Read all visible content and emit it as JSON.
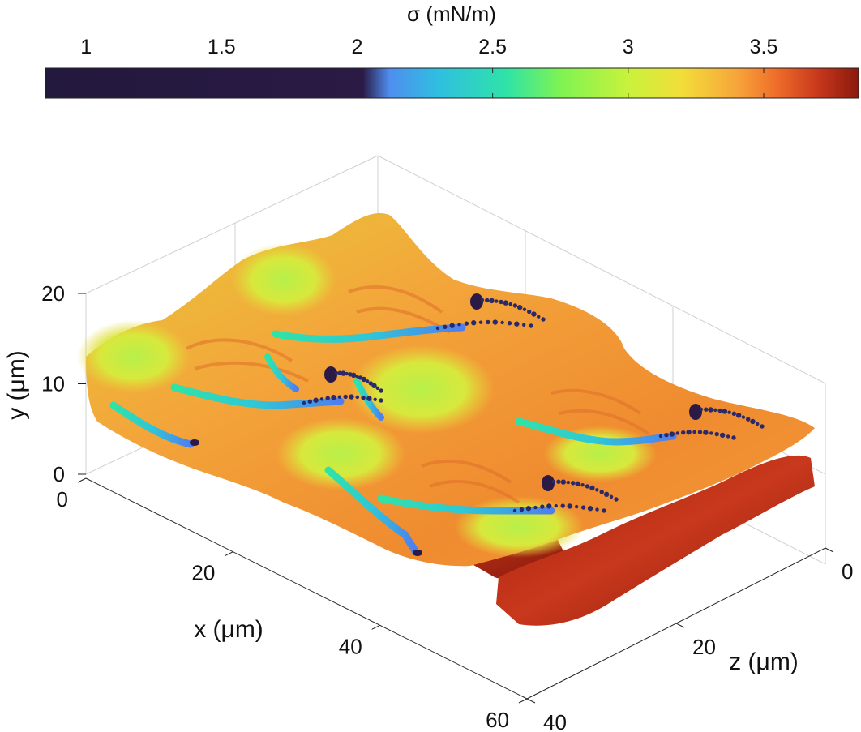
{
  "chart_data": {
    "type": "surface3d",
    "colorbar": {
      "label": "σ (mN/m)",
      "range": [
        0.85,
        3.85
      ],
      "ticks": [
        {
          "value": 1,
          "label": "1"
        },
        {
          "value": 1.5,
          "label": "1.5"
        },
        {
          "value": 2,
          "label": "2"
        },
        {
          "value": 2.5,
          "label": "2.5"
        },
        {
          "value": 3,
          "label": "3"
        },
        {
          "value": 3.5,
          "label": "3.5"
        }
      ],
      "placement": "top",
      "colormap": [
        {
          "v": 0.85,
          "c": "#23183d"
        },
        {
          "v": 2.02,
          "c": "#2a1a45"
        },
        {
          "v": 2.12,
          "c": "#4f8ef0"
        },
        {
          "v": 2.3,
          "c": "#2fbfe0"
        },
        {
          "v": 2.55,
          "c": "#2fe3a8"
        },
        {
          "v": 2.75,
          "c": "#7ef352"
        },
        {
          "v": 3.0,
          "c": "#c9f23c"
        },
        {
          "v": 3.2,
          "c": "#f2dd3a"
        },
        {
          "v": 3.4,
          "c": "#f7a53a"
        },
        {
          "v": 3.55,
          "c": "#ef6c2a"
        },
        {
          "v": 3.7,
          "c": "#c8381c"
        },
        {
          "v": 3.85,
          "c": "#8a1a0c"
        }
      ]
    },
    "axes": {
      "x": {
        "label": "x (μm)",
        "range": [
          0,
          60
        ],
        "ticks": [
          {
            "value": 0,
            "label": "0"
          },
          {
            "value": 20,
            "label": "20"
          },
          {
            "value": 40,
            "label": "40"
          },
          {
            "value": 60,
            "label": "60"
          }
        ]
      },
      "y": {
        "label": "y (μm)",
        "range": [
          0,
          20
        ],
        "ticks": [
          {
            "value": 0,
            "label": "0"
          },
          {
            "value": 10,
            "label": "10"
          },
          {
            "value": 20,
            "label": "20"
          }
        ]
      },
      "z": {
        "label": "z (μm)",
        "range": [
          0,
          40
        ],
        "ticks": [
          {
            "value": 0,
            "label": "0"
          },
          {
            "value": 20,
            "label": "20"
          },
          {
            "value": 40,
            "label": "40"
          }
        ]
      }
    },
    "grid": true,
    "colors": {
      "surface_main": "#f3a53a",
      "surface_high": "#e8e23a",
      "surface_mid": "#9ff04a",
      "channel": "#2fc6d8",
      "bottom_sheet": "#b52a12",
      "droplets": "#2a1a45"
    }
  }
}
